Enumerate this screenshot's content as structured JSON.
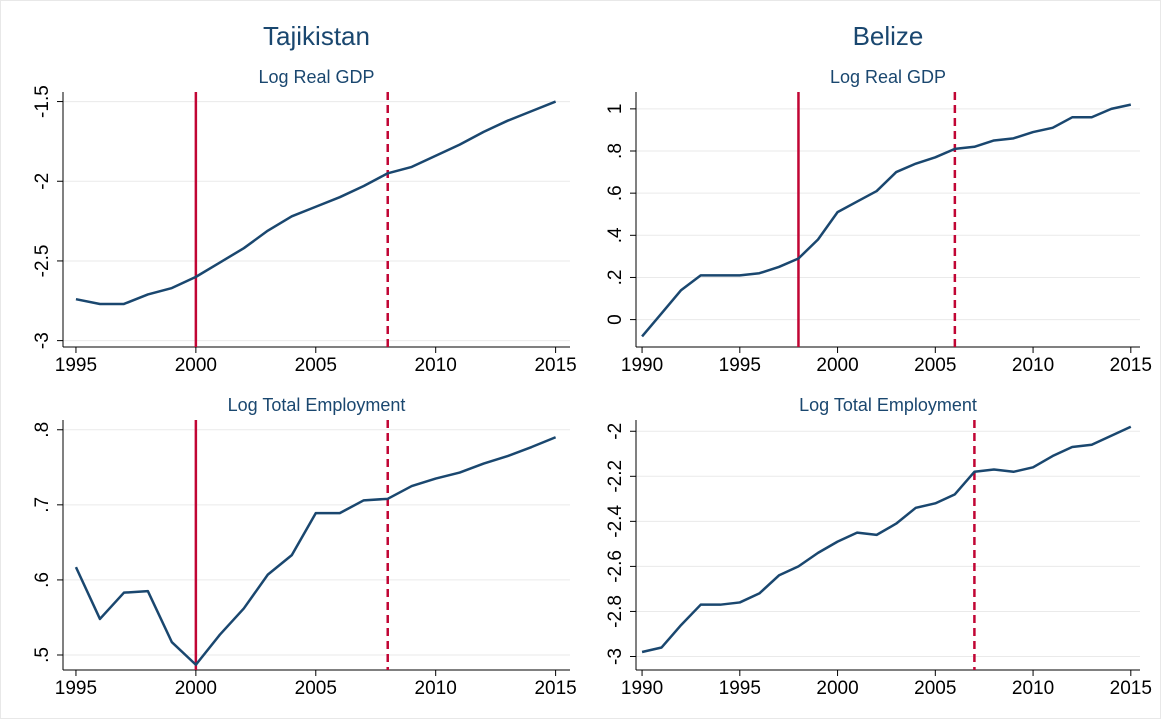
{
  "chart_data": [
    {
      "type": "line",
      "supertitle": "Tajikistan",
      "title": "Log Real GDP",
      "x": [
        1995,
        1996,
        1997,
        1998,
        1999,
        2000,
        2001,
        2002,
        2003,
        2004,
        2005,
        2006,
        2007,
        2008,
        2009,
        2010,
        2011,
        2012,
        2013,
        2014,
        2015
      ],
      "values": [
        -2.74,
        -2.77,
        -2.77,
        -2.71,
        -2.67,
        -2.6,
        -2.51,
        -2.42,
        -2.31,
        -2.22,
        -2.16,
        -2.1,
        -2.03,
        -1.95,
        -1.91,
        -1.84,
        -1.77,
        -1.69,
        -1.62,
        -1.56,
        -1.5
      ],
      "color": "#1a476f",
      "xlim": [
        1994.46,
        2015.6
      ],
      "xticks": [
        1995,
        2000,
        2005,
        2010,
        2015
      ],
      "ylim": [
        -3.04,
        -1.44
      ],
      "yticks": [
        -3,
        -2.5,
        -2,
        -1.5
      ],
      "grid": true,
      "vlines": [
        {
          "x": 2000,
          "style": "solid",
          "color": "#c10534"
        },
        {
          "x": 2008,
          "style": "dashed",
          "color": "#c10534"
        }
      ]
    },
    {
      "type": "line",
      "supertitle": "Belize",
      "title": "Log Real GDP",
      "x": [
        1990,
        1991,
        1992,
        1993,
        1994,
        1995,
        1996,
        1997,
        1998,
        1999,
        2000,
        2001,
        2002,
        2003,
        2004,
        2005,
        2006,
        2007,
        2008,
        2009,
        2010,
        2011,
        2012,
        2013,
        2014,
        2015
      ],
      "values": [
        -0.08,
        0.03,
        0.14,
        0.21,
        0.21,
        0.21,
        0.22,
        0.25,
        0.29,
        0.38,
        0.51,
        0.56,
        0.61,
        0.7,
        0.74,
        0.77,
        0.81,
        0.82,
        0.85,
        0.86,
        0.89,
        0.91,
        0.96,
        0.96,
        1.0,
        1.02
      ],
      "color": "#1a476f",
      "xlim": [
        1989.69,
        2015.47
      ],
      "xticks": [
        1990,
        1995,
        2000,
        2005,
        2010,
        2015
      ],
      "ylim": [
        -0.13,
        1.08
      ],
      "yticks": [
        0,
        {
          "value": 0.2,
          "label": ".2"
        },
        {
          "value": 0.4,
          "label": ".4"
        },
        {
          "value": 0.6,
          "label": ".6"
        },
        {
          "value": 0.8,
          "label": ".8"
        },
        1
      ],
      "grid": true,
      "vlines": [
        {
          "x": 1998,
          "style": "solid",
          "color": "#c10534"
        },
        {
          "x": 2006,
          "style": "dashed",
          "color": "#c10534"
        }
      ]
    },
    {
      "type": "line",
      "title": "Log Total Employment",
      "x": [
        1995,
        1996,
        1997,
        1998,
        1999,
        2000,
        2001,
        2002,
        2003,
        2004,
        2005,
        2006,
        2007,
        2008,
        2009,
        2010,
        2011,
        2012,
        2013,
        2014,
        2015
      ],
      "values": [
        0.617,
        0.548,
        0.583,
        0.585,
        0.517,
        0.487,
        0.527,
        0.562,
        0.607,
        0.633,
        0.689,
        0.689,
        0.706,
        0.708,
        0.725,
        0.735,
        0.743,
        0.755,
        0.765,
        0.777,
        0.79
      ],
      "color": "#1a476f",
      "xlim": [
        1994.46,
        2015.6
      ],
      "xticks": [
        1995,
        2000,
        2005,
        2010,
        2015
      ],
      "ylim": [
        0.48,
        0.813
      ],
      "yticks": [
        {
          "value": 0.5,
          "label": ".5"
        },
        {
          "value": 0.6,
          "label": ".6"
        },
        {
          "value": 0.7,
          "label": ".7"
        },
        {
          "value": 0.8,
          "label": ".8"
        }
      ],
      "grid": true,
      "vlines": [
        {
          "x": 2000,
          "style": "solid",
          "color": "#c10534"
        },
        {
          "x": 2008,
          "style": "dashed",
          "color": "#c10534"
        }
      ]
    },
    {
      "type": "line",
      "title": "Log Total Employment",
      "x": [
        1990,
        1991,
        1992,
        1993,
        1994,
        1995,
        1996,
        1997,
        1998,
        1999,
        2000,
        2001,
        2002,
        2003,
        2004,
        2005,
        2006,
        2007,
        2008,
        2009,
        2010,
        2011,
        2012,
        2013,
        2014,
        2015
      ],
      "values": [
        -2.98,
        -2.96,
        -2.86,
        -2.77,
        -2.77,
        -2.76,
        -2.72,
        -2.64,
        -2.6,
        -2.54,
        -2.49,
        -2.45,
        -2.46,
        -2.41,
        -2.34,
        -2.32,
        -2.28,
        -2.18,
        -2.17,
        -2.18,
        -2.16,
        -2.11,
        -2.07,
        -2.06,
        -2.02,
        -1.98
      ],
      "color": "#1a476f",
      "xlim": [
        1989.69,
        2015.47
      ],
      "xticks": [
        1990,
        1995,
        2000,
        2005,
        2010,
        2015
      ],
      "ylim": [
        -3.06,
        -1.95
      ],
      "yticks": [
        -3,
        -2.8,
        -2.6,
        -2.4,
        -2.2,
        -2
      ],
      "grid": true,
      "vlines": [
        {
          "x": 2007,
          "style": "dashed",
          "color": "#c10534"
        }
      ]
    }
  ]
}
